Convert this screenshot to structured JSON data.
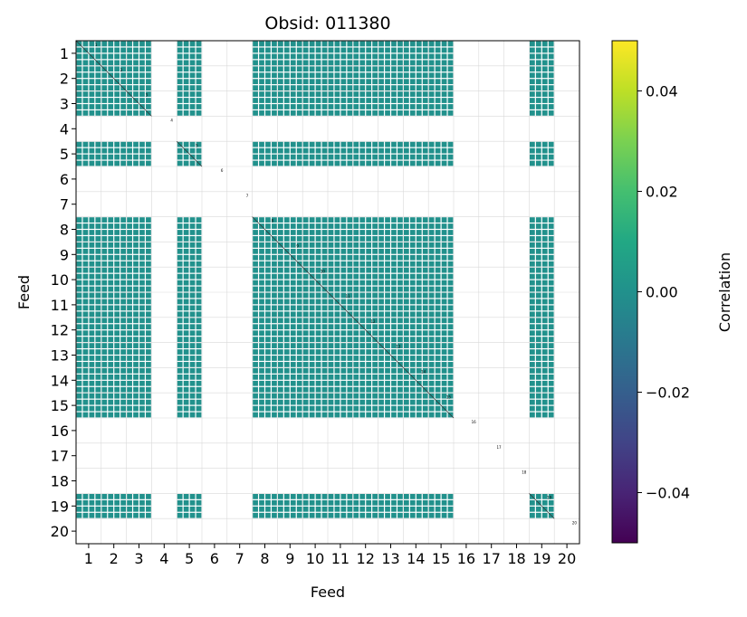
{
  "chart_data": {
    "type": "heatmap",
    "title": "Obsid: 011380",
    "xlabel": "Feed",
    "ylabel": "Feed",
    "feeds": [
      1,
      2,
      3,
      4,
      5,
      6,
      7,
      8,
      9,
      10,
      11,
      12,
      13,
      14,
      15,
      16,
      17,
      18,
      19,
      20
    ],
    "active_feeds": [
      1,
      2,
      3,
      5,
      8,
      9,
      10,
      11,
      12,
      13,
      14,
      15,
      19
    ],
    "cell_value": 0.0,
    "colorbar": {
      "label": "Correlation",
      "min": -0.05,
      "max": 0.05,
      "ticks": [
        -0.04,
        -0.02,
        0.0,
        0.02,
        0.04
      ],
      "tick_labels": [
        "−0.04",
        "−0.02",
        "0.00",
        "0.02",
        "0.04"
      ],
      "colormap": "viridis"
    },
    "grid": true,
    "colors": {
      "cell": "#21918c"
    }
  }
}
